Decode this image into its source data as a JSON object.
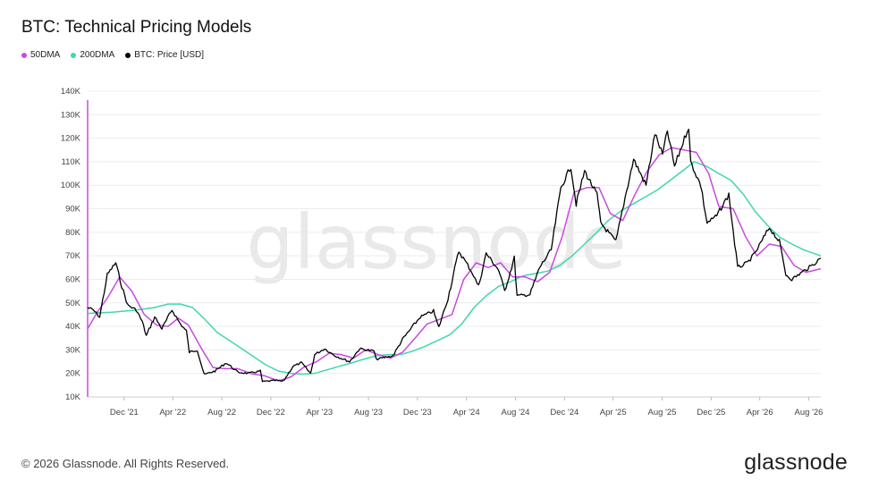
{
  "title": "BTC: Technical Pricing Models",
  "legend": [
    {
      "label": "50DMA",
      "color": "#c74be0"
    },
    {
      "label": "200DMA",
      "color": "#40d6b0"
    },
    {
      "label": "BTC: Price [USD]",
      "color": "#000000"
    }
  ],
  "footer": {
    "copyright": "© 2026 Glassnode. All Rights Reserved.",
    "logo": "glassnode"
  },
  "chart_data": {
    "type": "line",
    "title": "BTC: Technical Pricing Models",
    "x_labels": [
      "Dec '21",
      "Apr '22",
      "Aug '22",
      "Dec '22",
      "Apr '23",
      "Aug '23",
      "Dec '23",
      "Apr '24",
      "Aug '24",
      "Dec '24",
      "Apr '25",
      "Aug '25",
      "Dec '25",
      "Apr '26",
      "Aug '26"
    ],
    "y_labels": [
      "10K",
      "20K",
      "30K",
      "40K",
      "50K",
      "60K",
      "70K",
      "80K",
      "90K",
      "100K",
      "110K",
      "120K",
      "130K",
      "140K"
    ],
    "ylim": [
      10000,
      140000
    ],
    "xlim": [
      "2021-09-01",
      "2026-08-31"
    ],
    "grid": true,
    "legend_position": "top-left",
    "watermark": "glassnode",
    "series": [
      {
        "name": "BTC: Price [USD]",
        "color": "#000000",
        "points": [
          [
            "2021-09-01",
            48000
          ],
          [
            "2021-09-15",
            47000
          ],
          [
            "2021-10-01",
            44000
          ],
          [
            "2021-10-20",
            62000
          ],
          [
            "2021-11-10",
            67000
          ],
          [
            "2021-11-25",
            57000
          ],
          [
            "2021-12-10",
            49000
          ],
          [
            "2021-12-31",
            47000
          ],
          [
            "2022-01-15",
            42000
          ],
          [
            "2022-01-25",
            36000
          ],
          [
            "2022-02-15",
            44000
          ],
          [
            "2022-03-05",
            39000
          ],
          [
            "2022-03-30",
            47000
          ],
          [
            "2022-04-20",
            41000
          ],
          [
            "2022-05-05",
            38000
          ],
          [
            "2022-05-12",
            29000
          ],
          [
            "2022-06-01",
            30000
          ],
          [
            "2022-06-18",
            19500
          ],
          [
            "2022-07-15",
            21000
          ],
          [
            "2022-08-12",
            24500
          ],
          [
            "2022-09-10",
            20500
          ],
          [
            "2022-10-05",
            20000
          ],
          [
            "2022-11-05",
            21000
          ],
          [
            "2022-11-10",
            16500
          ],
          [
            "2022-12-15",
            17000
          ],
          [
            "2023-01-01",
            16600
          ],
          [
            "2023-01-25",
            23000
          ],
          [
            "2023-02-15",
            24500
          ],
          [
            "2023-03-10",
            20000
          ],
          [
            "2023-03-20",
            28000
          ],
          [
            "2023-04-14",
            30500
          ],
          [
            "2023-05-10",
            27500
          ],
          [
            "2023-06-15",
            25000
          ],
          [
            "2023-07-10",
            30500
          ],
          [
            "2023-08-15",
            29500
          ],
          [
            "2023-08-20",
            26000
          ],
          [
            "2023-10-01",
            27500
          ],
          [
            "2023-10-25",
            34500
          ],
          [
            "2023-12-08",
            44000
          ],
          [
            "2024-01-10",
            46500
          ],
          [
            "2024-01-23",
            39500
          ],
          [
            "2024-02-15",
            52000
          ],
          [
            "2024-03-13",
            72000
          ],
          [
            "2024-04-15",
            63000
          ],
          [
            "2024-05-01",
            57000
          ],
          [
            "2024-05-20",
            71000
          ],
          [
            "2024-06-20",
            64000
          ],
          [
            "2024-07-05",
            55000
          ],
          [
            "2024-07-29",
            69000
          ],
          [
            "2024-08-05",
            53000
          ],
          [
            "2024-09-06",
            53500
          ],
          [
            "2024-09-30",
            65000
          ],
          [
            "2024-10-29",
            72500
          ],
          [
            "2024-11-12",
            88000
          ],
          [
            "2024-11-22",
            99000
          ],
          [
            "2024-12-17",
            108000
          ],
          [
            "2024-12-30",
            92000
          ],
          [
            "2025-01-20",
            106000
          ],
          [
            "2025-02-20",
            96000
          ],
          [
            "2025-03-01",
            84000
          ],
          [
            "2025-04-08",
            76000
          ],
          [
            "2025-05-01",
            95000
          ],
          [
            "2025-05-22",
            111000
          ],
          [
            "2025-06-22",
            100000
          ],
          [
            "2025-07-14",
            122000
          ],
          [
            "2025-08-02",
            113000
          ],
          [
            "2025-08-14",
            123000
          ],
          [
            "2025-09-01",
            108000
          ],
          [
            "2025-10-06",
            125000
          ],
          [
            "2025-10-11",
            110000
          ],
          [
            "2025-11-05",
            100000
          ],
          [
            "2025-11-21",
            84000
          ],
          [
            "2025-12-15",
            87000
          ],
          [
            "2026-01-14",
            96000
          ],
          [
            "2026-02-05",
            65000
          ],
          [
            "2026-03-01",
            67000
          ],
          [
            "2026-03-20",
            71000
          ],
          [
            "2026-04-25",
            82000
          ],
          [
            "2026-05-20",
            76000
          ],
          [
            "2026-06-05",
            62000
          ],
          [
            "2026-06-20",
            60000
          ],
          [
            "2026-07-15",
            63000
          ],
          [
            "2026-08-10",
            66000
          ],
          [
            "2026-08-31",
            69000
          ]
        ]
      },
      {
        "name": "50DMA",
        "color": "#c74be0",
        "points": [
          [
            "2021-09-01",
            39000
          ],
          [
            "2021-09-25",
            46000
          ],
          [
            "2021-10-20",
            52000
          ],
          [
            "2021-11-20",
            61000
          ],
          [
            "2021-12-20",
            55000
          ],
          [
            "2022-01-20",
            45000
          ],
          [
            "2022-02-20",
            40500
          ],
          [
            "2022-03-20",
            40000
          ],
          [
            "2022-04-15",
            43500
          ],
          [
            "2022-05-10",
            40500
          ],
          [
            "2022-06-10",
            31000
          ],
          [
            "2022-07-10",
            22500
          ],
          [
            "2022-08-10",
            22000
          ],
          [
            "2022-09-10",
            22000
          ],
          [
            "2022-10-15",
            19800
          ],
          [
            "2022-11-15",
            19000
          ],
          [
            "2022-12-20",
            16800
          ],
          [
            "2023-01-20",
            18500
          ],
          [
            "2023-02-20",
            22500
          ],
          [
            "2023-03-25",
            25000
          ],
          [
            "2023-04-25",
            28500
          ],
          [
            "2023-05-25",
            28000
          ],
          [
            "2023-06-25",
            26500
          ],
          [
            "2023-07-25",
            30000
          ],
          [
            "2023-08-25",
            28000
          ],
          [
            "2023-09-25",
            26500
          ],
          [
            "2023-10-25",
            29000
          ],
          [
            "2023-11-25",
            35000
          ],
          [
            "2023-12-25",
            41000
          ],
          [
            "2024-01-25",
            43000
          ],
          [
            "2024-02-25",
            45000
          ],
          [
            "2024-03-25",
            60000
          ],
          [
            "2024-04-25",
            67000
          ],
          [
            "2024-05-25",
            65000
          ],
          [
            "2024-06-25",
            67000
          ],
          [
            "2024-07-25",
            61000
          ],
          [
            "2024-08-25",
            61000
          ],
          [
            "2024-09-25",
            59000
          ],
          [
            "2024-10-25",
            63000
          ],
          [
            "2024-11-25",
            78000
          ],
          [
            "2024-12-25",
            97000
          ],
          [
            "2025-01-25",
            99000
          ],
          [
            "2025-02-25",
            99000
          ],
          [
            "2025-03-25",
            88000
          ],
          [
            "2025-04-25",
            85000
          ],
          [
            "2025-05-25",
            96000
          ],
          [
            "2025-06-25",
            106000
          ],
          [
            "2025-07-25",
            113000
          ],
          [
            "2025-08-25",
            116000
          ],
          [
            "2025-09-25",
            115000
          ],
          [
            "2025-10-25",
            114000
          ],
          [
            "2025-11-25",
            105000
          ],
          [
            "2025-12-20",
            91000
          ],
          [
            "2026-01-25",
            90000
          ],
          [
            "2026-02-25",
            78000
          ],
          [
            "2026-03-25",
            70000
          ],
          [
            "2026-04-25",
            75000
          ],
          [
            "2026-05-25",
            74000
          ],
          [
            "2026-06-25",
            66000
          ],
          [
            "2026-07-25",
            63000
          ],
          [
            "2026-08-31",
            64500
          ]
        ]
      },
      {
        "name": "200DMA",
        "color": "#40d6b0",
        "points": [
          [
            "2021-09-01",
            45500
          ],
          [
            "2021-11-01",
            46000
          ],
          [
            "2022-01-01",
            47000
          ],
          [
            "2022-02-15",
            48000
          ],
          [
            "2022-03-20",
            49500
          ],
          [
            "2022-04-20",
            49500
          ],
          [
            "2022-05-20",
            48000
          ],
          [
            "2022-06-20",
            43000
          ],
          [
            "2022-07-20",
            37500
          ],
          [
            "2022-08-20",
            34000
          ],
          [
            "2022-09-20",
            30500
          ],
          [
            "2022-10-20",
            27000
          ],
          [
            "2022-11-20",
            23500
          ],
          [
            "2022-12-20",
            21000
          ],
          [
            "2023-01-20",
            20000
          ],
          [
            "2023-02-20",
            19700
          ],
          [
            "2023-03-20",
            20000
          ],
          [
            "2023-04-20",
            21500
          ],
          [
            "2023-05-20",
            23000
          ],
          [
            "2023-06-20",
            24500
          ],
          [
            "2023-07-20",
            26000
          ],
          [
            "2023-08-20",
            27500
          ],
          [
            "2023-09-20",
            28000
          ],
          [
            "2023-10-20",
            28000
          ],
          [
            "2023-11-20",
            29500
          ],
          [
            "2023-12-20",
            31500
          ],
          [
            "2024-01-20",
            34000
          ],
          [
            "2024-02-20",
            36500
          ],
          [
            "2024-03-20",
            41000
          ],
          [
            "2024-04-20",
            48000
          ],
          [
            "2024-05-20",
            53000
          ],
          [
            "2024-06-20",
            57000
          ],
          [
            "2024-07-20",
            59000
          ],
          [
            "2024-08-20",
            61500
          ],
          [
            "2024-09-20",
            62500
          ],
          [
            "2024-10-20",
            63500
          ],
          [
            "2024-11-20",
            66000
          ],
          [
            "2024-12-20",
            70000
          ],
          [
            "2025-01-20",
            75000
          ],
          [
            "2025-02-20",
            80000
          ],
          [
            "2025-03-20",
            85000
          ],
          [
            "2025-04-20",
            89000
          ],
          [
            "2025-05-20",
            92000
          ],
          [
            "2025-06-20",
            95000
          ],
          [
            "2025-07-20",
            98000
          ],
          [
            "2025-08-20",
            102000
          ],
          [
            "2025-09-20",
            106000
          ],
          [
            "2025-10-20",
            110000
          ],
          [
            "2025-11-20",
            108000
          ],
          [
            "2025-12-20",
            105000
          ],
          [
            "2026-01-20",
            102000
          ],
          [
            "2026-02-20",
            96000
          ],
          [
            "2026-03-20",
            89000
          ],
          [
            "2026-04-20",
            83000
          ],
          [
            "2026-05-20",
            78000
          ],
          [
            "2026-06-20",
            75000
          ],
          [
            "2026-07-20",
            72500
          ],
          [
            "2026-08-31",
            70000
          ]
        ]
      }
    ]
  }
}
